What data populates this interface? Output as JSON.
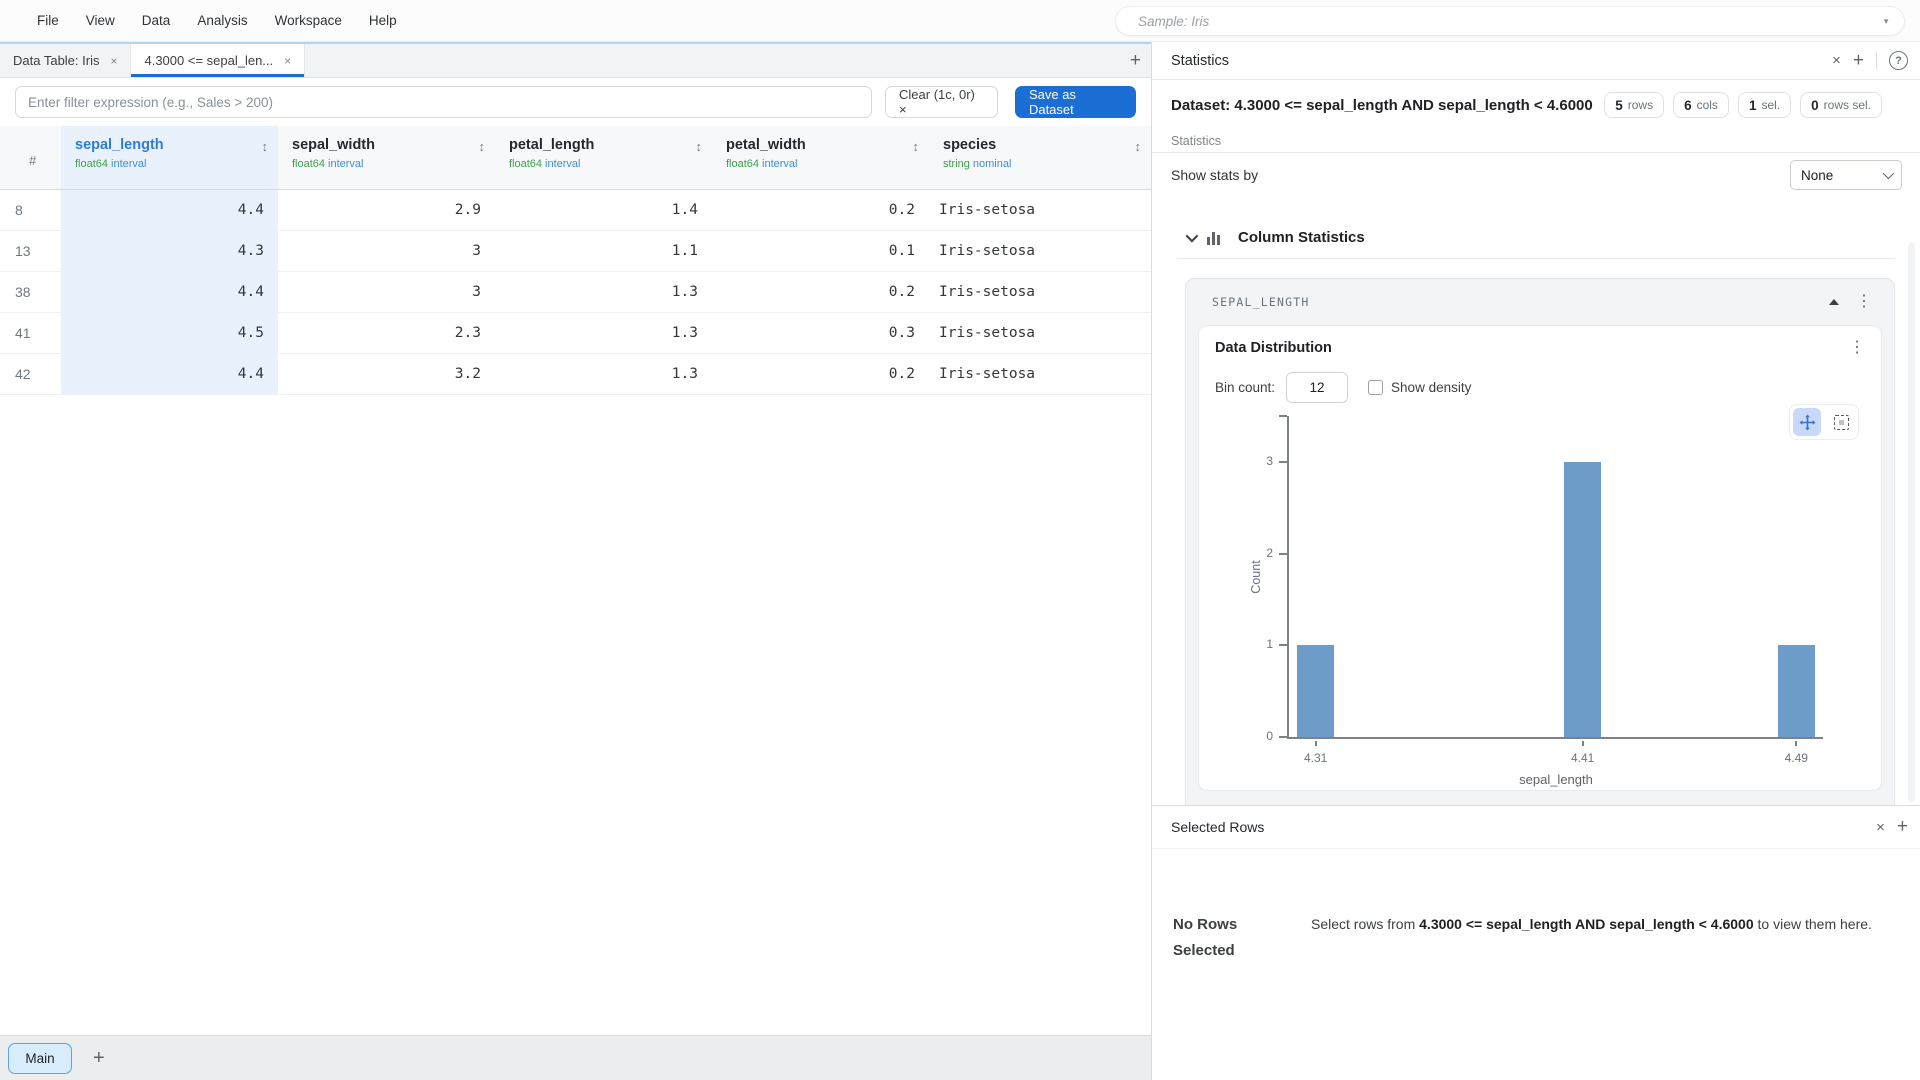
{
  "menubar": {
    "items": [
      "File",
      "View",
      "Data",
      "Analysis",
      "Workspace",
      "Help"
    ],
    "sample_placeholder": "Sample: Iris"
  },
  "tabbar": {
    "tabs": [
      {
        "label": "Data Table: Iris"
      },
      {
        "label": "4.3000 <= sepal_len..."
      }
    ]
  },
  "filterbar": {
    "placeholder": "Enter filter expression (e.g., Sales > 200)",
    "clear_label": "Clear (1c, 0r) ×",
    "save_label": "Save as Dataset"
  },
  "table": {
    "index_header": "#",
    "columns": [
      {
        "name": "sepal_length",
        "dtype": "float64",
        "role": "interval"
      },
      {
        "name": "sepal_width",
        "dtype": "float64",
        "role": "interval"
      },
      {
        "name": "petal_length",
        "dtype": "float64",
        "role": "interval"
      },
      {
        "name": "petal_width",
        "dtype": "float64",
        "role": "interval"
      },
      {
        "name": "species",
        "dtype": "string",
        "role": "nominal"
      }
    ],
    "rows": [
      {
        "index": "8",
        "cells": [
          "4.4",
          "2.9",
          "1.4",
          "0.2",
          "Iris-setosa"
        ]
      },
      {
        "index": "13",
        "cells": [
          "4.3",
          "3",
          "1.1",
          "0.1",
          "Iris-setosa"
        ]
      },
      {
        "index": "38",
        "cells": [
          "4.4",
          "3",
          "1.3",
          "0.2",
          "Iris-setosa"
        ]
      },
      {
        "index": "41",
        "cells": [
          "4.5",
          "2.3",
          "1.3",
          "0.3",
          "Iris-setosa"
        ]
      },
      {
        "index": "42",
        "cells": [
          "4.4",
          "3.2",
          "1.3",
          "0.2",
          "Iris-setosa"
        ]
      }
    ]
  },
  "stats_panel": {
    "title": "Statistics",
    "dataset_label": "Dataset: 4.3000 <= sepal_length AND sepal_length < 4.6000",
    "badges": [
      {
        "value": "5",
        "label": "rows"
      },
      {
        "value": "6",
        "label": "cols"
      },
      {
        "value": "1",
        "label": "sel."
      },
      {
        "value": "0",
        "label": "rows sel."
      }
    ],
    "section_label": "Statistics",
    "show_stats_by_label": "Show stats by",
    "show_stats_by_value": "None",
    "column_statistics_title": "Column Statistics",
    "card": {
      "column": "SEPAL_LENGTH",
      "chart_title": "Data Distribution",
      "bin_count_label": "Bin count:",
      "bin_count": "12",
      "show_density_label": "Show density",
      "density_checked": false
    }
  },
  "chart_data": {
    "type": "bar",
    "title": "Data Distribution",
    "xlabel": "sepal_length",
    "ylabel": "Count",
    "x_domain": [
      4.3,
      4.5
    ],
    "ylim": [
      0,
      3.5
    ],
    "y_ticks": [
      0,
      1,
      2,
      3
    ],
    "x_ticks": [
      4.31,
      4.41,
      4.49
    ],
    "bars": [
      {
        "x": 4.31,
        "count": 1
      },
      {
        "x": 4.41,
        "count": 3
      },
      {
        "x": 4.49,
        "count": 1
      }
    ],
    "bar_color": "#6d9cc9",
    "grid": false,
    "legend": false
  },
  "selected_rows": {
    "title": "Selected Rows",
    "empty_title": "No Rows Selected",
    "empty_text_prefix": "Select rows from ",
    "empty_text_bold": "4.3000 <= sepal_length AND sepal_length < 4.6000",
    "empty_text_suffix": " to view them here."
  },
  "footer": {
    "main_tab_label": "Main"
  },
  "colors": {
    "accent_blue": "#1b6ed3",
    "column_highlight": "#e9f2fc",
    "selected_column_header": "#2e7cd6",
    "dtype_green": "#3f9e4f",
    "role_blue": "#3e8ed9",
    "histogram_bar": "#6d9cc9"
  }
}
